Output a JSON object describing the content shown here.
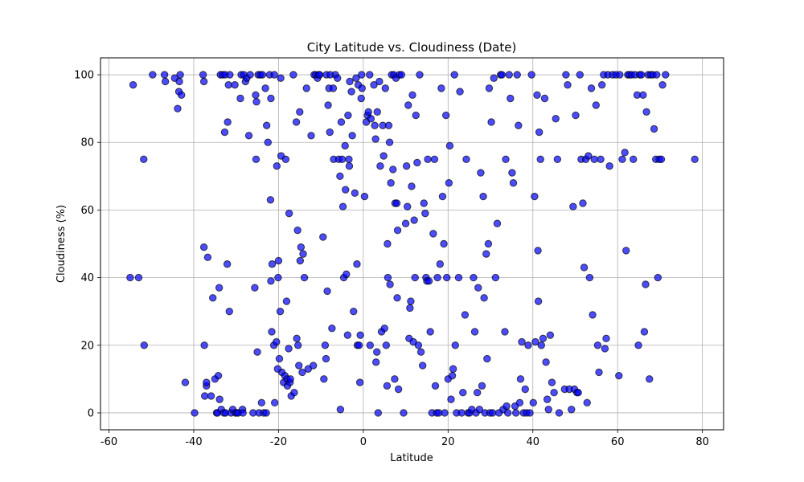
{
  "chart_data": {
    "type": "scatter",
    "title": "City Latitude vs. Cloudiness (Date)",
    "xlabel": "Latitude",
    "ylabel": "Cloudiness (%)",
    "xlim": [
      -62,
      85
    ],
    "ylim": [
      -5,
      105
    ],
    "xticks": [
      -60,
      -40,
      -20,
      0,
      20,
      40,
      60,
      80
    ],
    "yticks": [
      0,
      20,
      40,
      60,
      80,
      100
    ],
    "grid": true,
    "marker_color": "#0000ff",
    "marker_edge_color": "#000000",
    "marker_alpha": 0.7,
    "points": [
      [
        -54.3,
        97
      ],
      [
        -55,
        40
      ],
      [
        -53,
        40
      ],
      [
        -51.8,
        75
      ],
      [
        -51.7,
        20
      ],
      [
        -49.7,
        100
      ],
      [
        -46.9,
        100
      ],
      [
        -46.7,
        98
      ],
      [
        -44.5,
        99
      ],
      [
        -43.8,
        90
      ],
      [
        -43.5,
        95
      ],
      [
        -43.4,
        98
      ],
      [
        -43.2,
        100
      ],
      [
        -42.9,
        94
      ],
      [
        -42,
        9
      ],
      [
        -39.8,
        0
      ],
      [
        -37.8,
        100
      ],
      [
        -37.6,
        98
      ],
      [
        -37.6,
        49
      ],
      [
        -37.5,
        20
      ],
      [
        -37.4,
        5
      ],
      [
        -37,
        8
      ],
      [
        -37,
        9
      ],
      [
        -36.7,
        46
      ],
      [
        -35.9,
        5
      ],
      [
        -35.5,
        34
      ],
      [
        -35,
        10
      ],
      [
        -34.6,
        0
      ],
      [
        -34.4,
        0
      ],
      [
        -34.2,
        11
      ],
      [
        -34,
        37
      ],
      [
        -33.9,
        4
      ],
      [
        -33.7,
        100
      ],
      [
        -33.5,
        1
      ],
      [
        -33.2,
        100
      ],
      [
        -32.9,
        0
      ],
      [
        -32.7,
        83
      ],
      [
        -32.6,
        100
      ],
      [
        -32.5,
        0
      ],
      [
        -32.1,
        44
      ],
      [
        -32,
        86
      ],
      [
        -31.8,
        97
      ],
      [
        -31.6,
        30
      ],
      [
        -31.5,
        100
      ],
      [
        -31.2,
        0
      ],
      [
        -30.8,
        1
      ],
      [
        -30.3,
        97
      ],
      [
        -30.2,
        0
      ],
      [
        -29.8,
        0
      ],
      [
        -29.5,
        0
      ],
      [
        -29,
        93
      ],
      [
        -28.8,
        100
      ],
      [
        -28.5,
        1
      ],
      [
        -28.4,
        0
      ],
      [
        -28.2,
        100
      ],
      [
        -27.8,
        98
      ],
      [
        -27.5,
        99
      ],
      [
        -27,
        82
      ],
      [
        -26.7,
        100
      ],
      [
        -26,
        0
      ],
      [
        -25.6,
        37
      ],
      [
        -25.4,
        94
      ],
      [
        -25.3,
        75
      ],
      [
        -25.2,
        92
      ],
      [
        -25,
        18
      ],
      [
        -24.8,
        100
      ],
      [
        -24.6,
        0
      ],
      [
        -24.3,
        100
      ],
      [
        -24,
        3
      ],
      [
        -23.8,
        100
      ],
      [
        -23.5,
        0
      ],
      [
        -23.1,
        96
      ],
      [
        -22.9,
        0
      ],
      [
        -22.8,
        85
      ],
      [
        -22.5,
        80
      ],
      [
        -22.1,
        100
      ],
      [
        -21.9,
        63
      ],
      [
        -21.8,
        39
      ],
      [
        -21.8,
        93
      ],
      [
        -21.6,
        24
      ],
      [
        -21.5,
        44
      ],
      [
        -21.1,
        20
      ],
      [
        -21,
        100
      ],
      [
        -20.9,
        3
      ],
      [
        -20.5,
        21
      ],
      [
        -20.4,
        73
      ],
      [
        -20.2,
        13
      ],
      [
        -20.1,
        40
      ],
      [
        -20,
        45
      ],
      [
        -19.8,
        16
      ],
      [
        -19.6,
        30
      ],
      [
        -19.5,
        99
      ],
      [
        -19.4,
        76
      ],
      [
        -19.2,
        12
      ],
      [
        -18.8,
        9
      ],
      [
        -18.5,
        11
      ],
      [
        -18.3,
        75
      ],
      [
        -18.1,
        33
      ],
      [
        -18,
        10
      ],
      [
        -17.9,
        8
      ],
      [
        -17.6,
        19
      ],
      [
        -17.5,
        59
      ],
      [
        -17.3,
        9
      ],
      [
        -17.2,
        10
      ],
      [
        -17,
        5
      ],
      [
        -16.5,
        100
      ],
      [
        -16.3,
        6
      ],
      [
        -15.8,
        86
      ],
      [
        -15.7,
        22
      ],
      [
        -15.5,
        54
      ],
      [
        -15.4,
        20
      ],
      [
        -15.2,
        14
      ],
      [
        -15,
        89
      ],
      [
        -14.9,
        45
      ],
      [
        -14.7,
        49
      ],
      [
        -14.4,
        12
      ],
      [
        -14.2,
        47
      ],
      [
        -13.9,
        40
      ],
      [
        -13.4,
        96
      ],
      [
        -13,
        13
      ],
      [
        -12.3,
        82
      ],
      [
        -11.8,
        14
      ],
      [
        -11.6,
        100
      ],
      [
        -11.2,
        100
      ],
      [
        -10.8,
        99
      ],
      [
        -10.5,
        100
      ],
      [
        -10.3,
        100
      ],
      [
        -9.5,
        52
      ],
      [
        -9.3,
        10
      ],
      [
        -9,
        20
      ],
      [
        -8.8,
        16
      ],
      [
        -8.7,
        100
      ],
      [
        -8.5,
        36
      ],
      [
        -8.3,
        91
      ],
      [
        -8.1,
        96
      ],
      [
        -7.9,
        83
      ],
      [
        -7.8,
        100
      ],
      [
        -7.4,
        25
      ],
      [
        -7.1,
        96
      ],
      [
        -7,
        75
      ],
      [
        -6.6,
        100
      ],
      [
        -6.1,
        99
      ],
      [
        -5.8,
        75
      ],
      [
        -5.5,
        70
      ],
      [
        -5.4,
        1
      ],
      [
        -5.2,
        86
      ],
      [
        -5,
        75
      ],
      [
        -4.8,
        61
      ],
      [
        -4.6,
        40
      ],
      [
        -4.3,
        79
      ],
      [
        -4.2,
        66
      ],
      [
        -4,
        41
      ],
      [
        -3.7,
        23
      ],
      [
        -3.6,
        88
      ],
      [
        -3.4,
        75
      ],
      [
        -3.3,
        73
      ],
      [
        -3.2,
        98
      ],
      [
        -2.8,
        95
      ],
      [
        -2.6,
        82
      ],
      [
        -2.3,
        30
      ],
      [
        -2,
        65
      ],
      [
        -1.7,
        99
      ],
      [
        -1.5,
        44
      ],
      [
        -1.4,
        20
      ],
      [
        -1.2,
        97
      ],
      [
        -1,
        20
      ],
      [
        -0.8,
        9
      ],
      [
        -0.7,
        23
      ],
      [
        -0.5,
        93
      ],
      [
        -0.4,
        100
      ],
      [
        -0.3,
        96
      ],
      [
        0.3,
        64
      ],
      [
        0.7,
        86
      ],
      [
        1,
        88
      ],
      [
        1.2,
        89
      ],
      [
        1.5,
        100
      ],
      [
        1.6,
        20
      ],
      [
        1.8,
        87
      ],
      [
        2.5,
        97
      ],
      [
        2.7,
        85
      ],
      [
        2.9,
        81
      ],
      [
        3,
        15
      ],
      [
        3.2,
        18
      ],
      [
        3.3,
        89
      ],
      [
        3.5,
        0
      ],
      [
        3.8,
        98
      ],
      [
        4,
        73
      ],
      [
        4.3,
        24
      ],
      [
        4.6,
        85
      ],
      [
        4.8,
        76
      ],
      [
        5,
        25
      ],
      [
        5.2,
        96
      ],
      [
        5.4,
        20
      ],
      [
        5.6,
        8
      ],
      [
        5.7,
        50
      ],
      [
        5.8,
        40
      ],
      [
        6,
        85
      ],
      [
        6.2,
        80
      ],
      [
        6.3,
        38
      ],
      [
        6.5,
        68
      ],
      [
        6.7,
        100
      ],
      [
        7,
        72
      ],
      [
        7.2,
        100
      ],
      [
        7.4,
        10
      ],
      [
        7.5,
        62
      ],
      [
        7.7,
        99
      ],
      [
        7.9,
        62
      ],
      [
        8,
        34
      ],
      [
        8.1,
        54
      ],
      [
        8.3,
        7
      ],
      [
        8.5,
        100
      ],
      [
        9,
        100
      ],
      [
        9.5,
        0
      ],
      [
        10,
        56
      ],
      [
        10.2,
        73
      ],
      [
        10.4,
        61
      ],
      [
        10.6,
        91
      ],
      [
        10.8,
        22
      ],
      [
        11,
        31
      ],
      [
        11.2,
        33
      ],
      [
        11.4,
        67
      ],
      [
        11.6,
        94
      ],
      [
        11.8,
        21
      ],
      [
        12,
        57
      ],
      [
        12.2,
        40
      ],
      [
        12.4,
        88
      ],
      [
        12.7,
        74
      ],
      [
        13,
        20
      ],
      [
        13.3,
        100
      ],
      [
        13.6,
        18
      ],
      [
        14,
        14
      ],
      [
        14.3,
        62
      ],
      [
        14.6,
        59
      ],
      [
        14.8,
        40
      ],
      [
        15,
        39
      ],
      [
        15.2,
        75
      ],
      [
        15.5,
        39
      ],
      [
        15.8,
        24
      ],
      [
        16.2,
        0
      ],
      [
        16.5,
        53
      ],
      [
        16.8,
        75
      ],
      [
        17,
        8
      ],
      [
        17.3,
        0
      ],
      [
        17.5,
        40
      ],
      [
        17.8,
        0
      ],
      [
        18.1,
        44
      ],
      [
        18.4,
        96
      ],
      [
        18.7,
        64
      ],
      [
        19,
        50
      ],
      [
        19.2,
        0
      ],
      [
        19.5,
        88
      ],
      [
        19.7,
        40
      ],
      [
        20,
        10
      ],
      [
        20.2,
        68
      ],
      [
        20.4,
        79
      ],
      [
        20.7,
        4
      ],
      [
        21,
        11
      ],
      [
        21.2,
        13
      ],
      [
        21.5,
        100
      ],
      [
        21.7,
        20
      ],
      [
        22,
        0
      ],
      [
        22.5,
        40
      ],
      [
        22.8,
        95
      ],
      [
        23.2,
        0
      ],
      [
        23.5,
        6
      ],
      [
        24,
        29
      ],
      [
        24.3,
        75
      ],
      [
        24.7,
        0
      ],
      [
        25.1,
        0
      ],
      [
        25.6,
        1
      ],
      [
        26,
        40
      ],
      [
        26.3,
        24
      ],
      [
        26.6,
        0
      ],
      [
        26.9,
        6
      ],
      [
        27.1,
        37
      ],
      [
        27.4,
        1
      ],
      [
        27.7,
        71
      ],
      [
        28,
        8
      ],
      [
        28.3,
        64
      ],
      [
        28.5,
        34
      ],
      [
        28.7,
        0
      ],
      [
        29,
        47
      ],
      [
        29.2,
        16
      ],
      [
        29.5,
        50
      ],
      [
        29.7,
        96
      ],
      [
        29.9,
        0
      ],
      [
        30.2,
        86
      ],
      [
        30.5,
        0
      ],
      [
        30.8,
        99
      ],
      [
        31.2,
        40
      ],
      [
        31.6,
        56
      ],
      [
        32,
        0
      ],
      [
        32.4,
        100
      ],
      [
        32.7,
        100
      ],
      [
        33,
        1
      ],
      [
        33.4,
        24
      ],
      [
        33.6,
        75
      ],
      [
        33.8,
        2
      ],
      [
        34.1,
        0
      ],
      [
        34.4,
        100
      ],
      [
        34.7,
        93
      ],
      [
        35.1,
        71
      ],
      [
        35.4,
        68
      ],
      [
        35.8,
        2
      ],
      [
        36,
        0
      ],
      [
        36.3,
        100
      ],
      [
        36.6,
        85
      ],
      [
        36.9,
        3
      ],
      [
        37.1,
        10
      ],
      [
        37.4,
        21
      ],
      [
        37.8,
        0
      ],
      [
        38.2,
        7
      ],
      [
        38.5,
        0
      ],
      [
        38.9,
        20
      ],
      [
        39.3,
        0
      ],
      [
        39.7,
        100
      ],
      [
        40.1,
        3
      ],
      [
        40.4,
        64
      ],
      [
        40.6,
        21
      ],
      [
        41,
        94
      ],
      [
        41.2,
        48
      ],
      [
        41.3,
        33
      ],
      [
        41.5,
        83
      ],
      [
        41.8,
        75
      ],
      [
        42,
        20
      ],
      [
        42.4,
        22
      ],
      [
        42.8,
        93
      ],
      [
        43.1,
        15
      ],
      [
        43.4,
        4
      ],
      [
        43.7,
        1
      ],
      [
        44.1,
        23
      ],
      [
        44.5,
        9
      ],
      [
        45,
        6
      ],
      [
        45.4,
        87
      ],
      [
        45.8,
        75
      ],
      [
        46.2,
        0
      ],
      [
        47.5,
        7
      ],
      [
        47.8,
        100
      ],
      [
        48.2,
        97
      ],
      [
        48.6,
        7
      ],
      [
        49.1,
        1
      ],
      [
        49.5,
        61
      ],
      [
        49.8,
        7
      ],
      [
        50.1,
        88
      ],
      [
        50.4,
        6
      ],
      [
        50.7,
        6
      ],
      [
        51.1,
        100
      ],
      [
        51.4,
        75
      ],
      [
        51.8,
        62
      ],
      [
        52.1,
        43
      ],
      [
        52.5,
        75
      ],
      [
        52.8,
        3
      ],
      [
        53.1,
        76
      ],
      [
        53.4,
        40
      ],
      [
        53.8,
        96
      ],
      [
        54.1,
        29
      ],
      [
        54.5,
        75
      ],
      [
        54.9,
        91
      ],
      [
        55.3,
        20
      ],
      [
        55.6,
        12
      ],
      [
        56,
        75
      ],
      [
        56.3,
        97
      ],
      [
        56.7,
        100
      ],
      [
        57,
        19
      ],
      [
        57.3,
        22
      ],
      [
        57.7,
        100
      ],
      [
        58.1,
        73
      ],
      [
        58.8,
        100
      ],
      [
        59.6,
        100
      ],
      [
        60.3,
        11
      ],
      [
        60.5,
        100
      ],
      [
        61.1,
        75
      ],
      [
        61.7,
        77
      ],
      [
        62,
        48
      ],
      [
        62.4,
        100
      ],
      [
        62.8,
        100
      ],
      [
        63.3,
        100
      ],
      [
        63.7,
        75
      ],
      [
        64.1,
        100
      ],
      [
        64.6,
        94
      ],
      [
        64.9,
        20
      ],
      [
        65.2,
        100
      ],
      [
        65.6,
        100
      ],
      [
        66,
        94
      ],
      [
        66.3,
        24
      ],
      [
        66.6,
        38
      ],
      [
        66.8,
        89
      ],
      [
        67.2,
        100
      ],
      [
        67.5,
        10
      ],
      [
        67.8,
        100
      ],
      [
        68.3,
        100
      ],
      [
        68.6,
        84
      ],
      [
        69,
        75
      ],
      [
        69.2,
        100
      ],
      [
        69.5,
        40
      ],
      [
        69.8,
        75
      ],
      [
        70.3,
        75
      ],
      [
        70.6,
        97
      ],
      [
        71.3,
        100
      ],
      [
        78.2,
        75
      ]
    ]
  }
}
